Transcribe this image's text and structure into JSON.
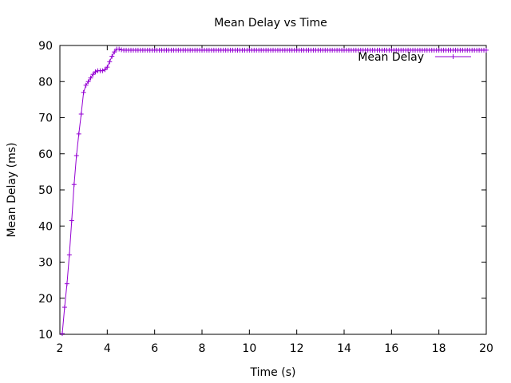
{
  "chart_data": {
    "type": "line",
    "title": "Mean Delay vs Time",
    "xlabel": "Time (s)",
    "ylabel": "Mean Delay (ms)",
    "xlim": [
      2,
      20
    ],
    "ylim": [
      10,
      90
    ],
    "x_ticks": [
      "2",
      "4",
      "6",
      "8",
      "10",
      "12",
      "14",
      "16",
      "18",
      "20"
    ],
    "y_ticks": [
      "10",
      "20",
      "30",
      "40",
      "50",
      "60",
      "70",
      "80",
      "90"
    ],
    "grid": false,
    "legend_position": "top-right",
    "marker": "plus",
    "series": [
      {
        "name": "Mean Delay",
        "color": "#9400d3",
        "x": [
          2.1,
          2.2,
          2.3,
          2.4,
          2.5,
          2.6,
          2.7,
          2.8,
          2.9,
          3.0,
          3.1,
          3.2,
          3.3,
          3.4,
          3.5,
          3.6,
          3.7,
          3.8,
          3.9,
          4.0,
          4.1,
          4.2,
          4.3,
          4.4,
          4.5,
          4.6,
          4.7,
          4.8,
          4.9,
          5.0,
          20.0
        ],
        "y": [
          10.2,
          17.5,
          24.0,
          32.0,
          41.5,
          51.5,
          59.5,
          65.5,
          71.0,
          77.0,
          79.0,
          80.0,
          81.0,
          82.0,
          82.7,
          83.0,
          83.0,
          83.0,
          83.3,
          84.0,
          85.5,
          87.0,
          88.2,
          89.0,
          89.0,
          88.8,
          88.7,
          88.7,
          88.7,
          88.7,
          88.7
        ]
      }
    ]
  }
}
